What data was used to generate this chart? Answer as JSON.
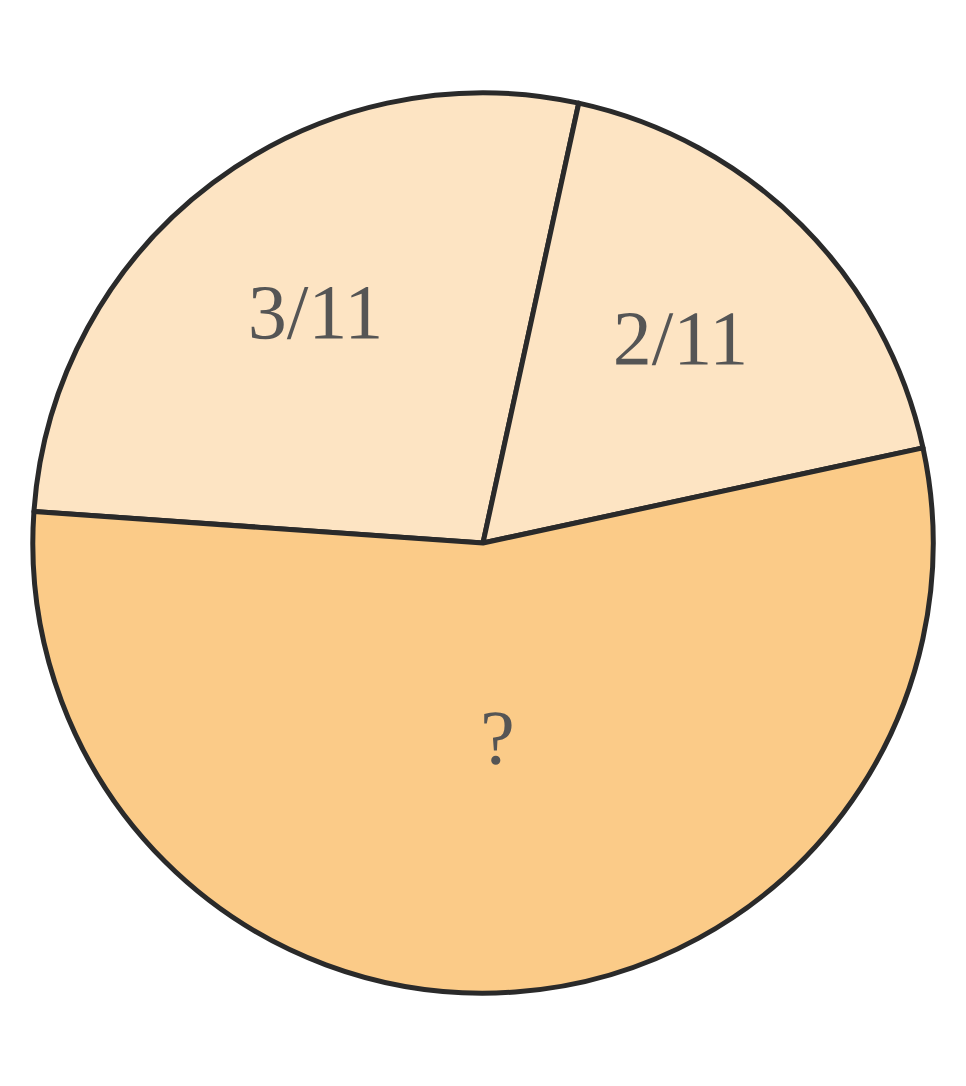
{
  "chart_data": {
    "type": "pie",
    "categories": [
      null,
      null,
      null
    ],
    "values": [
      27.3,
      18.2,
      54.5
    ],
    "value_labels": [
      "3/11",
      "2/11",
      "?"
    ],
    "colors": [
      "#fde4c3",
      "#fde4c3",
      "#fbcb88"
    ]
  }
}
